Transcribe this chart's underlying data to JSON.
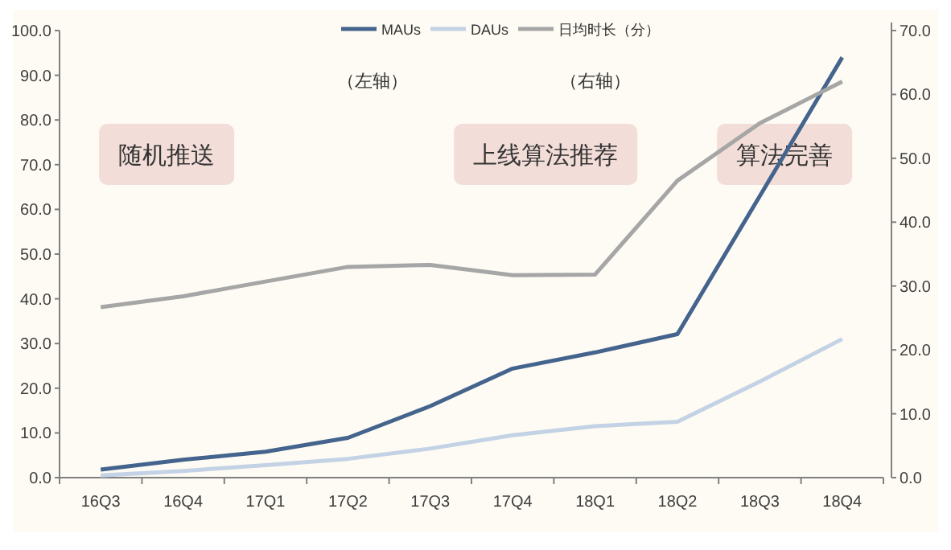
{
  "chart_data": {
    "type": "line",
    "categories": [
      "16Q3",
      "16Q4",
      "17Q1",
      "17Q2",
      "17Q3",
      "17Q4",
      "18Q1",
      "18Q2",
      "18Q3",
      "18Q4"
    ],
    "series": [
      {
        "name": "MAUs",
        "color": "#44648e",
        "values": [
          1.8,
          4.0,
          5.8,
          8.9,
          16.0,
          24.4,
          28.0,
          32.1,
          63.0,
          94.0
        ]
      },
      {
        "name": "DAUs",
        "color": "#c4d2e6",
        "values": [
          0.5,
          1.5,
          2.8,
          4.2,
          6.5,
          9.5,
          11.5,
          12.5,
          21.5,
          31.0
        ]
      },
      {
        "name": "日均时长（分）",
        "color": "#a6a6a6",
        "axis": "y2",
        "values": [
          26.7,
          28.4,
          30.7,
          33.0,
          33.3,
          31.7,
          31.8,
          46.5,
          55.5,
          62.0
        ]
      }
    ],
    "ylim": [
      0,
      100
    ],
    "yticks": [
      {
        "value": 0,
        "label": "0.0"
      },
      {
        "value": 10,
        "label": "10.0"
      },
      {
        "value": 20,
        "label": "20.0"
      },
      {
        "value": 30,
        "label": "30.0"
      },
      {
        "value": 40,
        "label": "40.0"
      },
      {
        "value": 50,
        "label": "50.0"
      },
      {
        "value": 60,
        "label": "60.0"
      },
      {
        "value": 70,
        "label": "70.0"
      },
      {
        "value": 80,
        "label": "80.0"
      },
      {
        "value": 90,
        "label": "90.0"
      },
      {
        "value": 100,
        "label": "100.0"
      }
    ],
    "y2lim": [
      0,
      70
    ],
    "y2ticks": [
      {
        "value": 0,
        "label": "0.0"
      },
      {
        "value": 10,
        "label": "10.0"
      },
      {
        "value": 20,
        "label": "20.0"
      },
      {
        "value": 30,
        "label": "30.0"
      },
      {
        "value": 40,
        "label": "40.0"
      },
      {
        "value": 50,
        "label": "50.0"
      },
      {
        "value": 60,
        "label": "60.0"
      },
      {
        "value": 70,
        "label": "70.0"
      }
    ],
    "legend": "top right",
    "annotations": [
      "（左轴）",
      "（右轴）",
      "随机推送",
      "上线算法推荐",
      "算法完善"
    ]
  }
}
